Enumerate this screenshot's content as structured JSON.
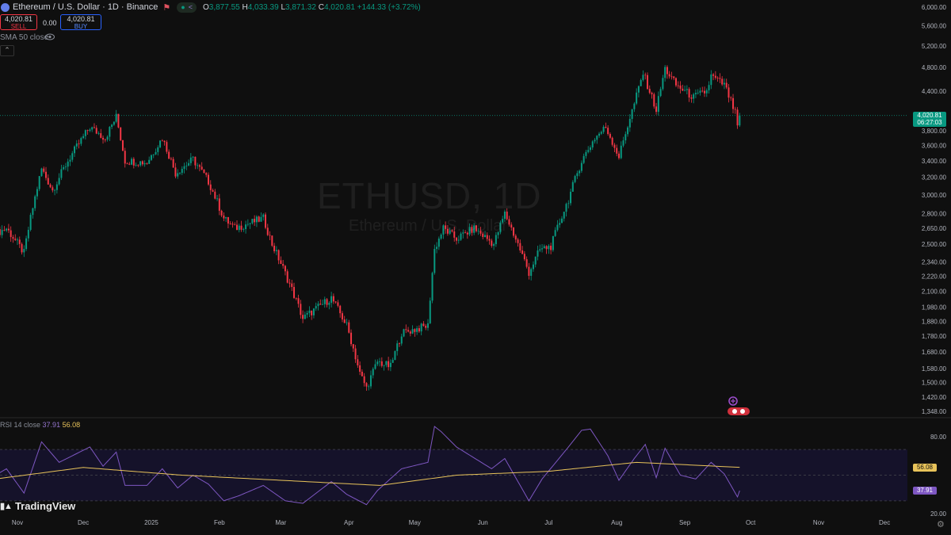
{
  "header": {
    "title": "Ethereum / U.S. Dollar · 1D · Binance",
    "open_label": "O",
    "open": "3,877.55",
    "high_label": "H",
    "high": "4,033.39",
    "low_label": "L",
    "low": "3,871.32",
    "close_label": "C",
    "close": "4,020.81",
    "change": "+144.33 (+3.72%)"
  },
  "trade": {
    "sell_price": "4,020.81",
    "sell_label": "SELL",
    "spread": "0.00",
    "buy_price": "4,020.81",
    "buy_label": "BUY"
  },
  "indicators": {
    "sma_label": "SMA 50 close",
    "rsi_label": "RSI 14 close",
    "rsi_value": "37.91",
    "rsi_ma_value": "56.08"
  },
  "watermark": {
    "symbol": "ETHUSD, 1D",
    "name": "Ethereum / U.S. Dollar"
  },
  "price_tag": {
    "price": "4,020.81",
    "countdown": "06:27:03"
  },
  "brand": "TradingView",
  "colors": {
    "up": "#089981",
    "down": "#f23645",
    "rsi": "#7e57c2",
    "rsi_ma": "#e8c35a",
    "background": "#0f0f0f"
  },
  "chart_data": {
    "type": "candlestick",
    "price_axis_ticks": [
      "6,000.00",
      "5,600.00",
      "5,200.00",
      "4,800.00",
      "4,400.00",
      "3,800.00",
      "3,600.00",
      "3,400.00",
      "3,200.00",
      "3,000.00",
      "2,800.00",
      "2,650.00",
      "2,500.00",
      "2,340.00",
      "2,220.00",
      "2,100.00",
      "1,980.00",
      "1,880.00",
      "1,780.00",
      "1,680.00",
      "1,580.00",
      "1,500.00",
      "1,420.00",
      "1,348.00"
    ],
    "price_axis_scale": "log",
    "rsi_axis_ticks": [
      "80.00",
      "20.00"
    ],
    "rsi_bands": [
      70,
      50,
      30
    ],
    "time_axis_ticks": [
      "Nov",
      "Dec",
      "2025",
      "Feb",
      "Mar",
      "Apr",
      "May",
      "Jun",
      "Jul",
      "Aug",
      "Sep",
      "Oct",
      "Nov",
      "Dec"
    ],
    "last_price": 4020.81,
    "rsi_last": 37.91,
    "rsi_ma_last": 56.08,
    "price_keypoints": [
      {
        "date": "2024-10-22",
        "price": 2600
      },
      {
        "date": "2024-10-27",
        "price": 2650
      },
      {
        "date": "2024-11-04",
        "price": 2420
      },
      {
        "date": "2024-11-12",
        "price": 3300
      },
      {
        "date": "2024-11-17",
        "price": 3050
      },
      {
        "date": "2024-11-24",
        "price": 3400
      },
      {
        "date": "2024-12-04",
        "price": 3850
      },
      {
        "date": "2024-12-11",
        "price": 3700
      },
      {
        "date": "2024-12-16",
        "price": 4000
      },
      {
        "date": "2024-12-20",
        "price": 3400
      },
      {
        "date": "2024-12-30",
        "price": 3380
      },
      {
        "date": "2025-01-06",
        "price": 3700
      },
      {
        "date": "2025-01-12",
        "price": 3250
      },
      {
        "date": "2025-01-20",
        "price": 3420
      },
      {
        "date": "2025-01-27",
        "price": 3150
      },
      {
        "date": "2025-02-03",
        "price": 2750
      },
      {
        "date": "2025-02-08",
        "price": 2650
      },
      {
        "date": "2025-02-21",
        "price": 2750
      },
      {
        "date": "2025-02-25",
        "price": 2500
      },
      {
        "date": "2025-03-04",
        "price": 2200
      },
      {
        "date": "2025-03-11",
        "price": 1900
      },
      {
        "date": "2025-03-24",
        "price": 2050
      },
      {
        "date": "2025-03-31",
        "price": 1850
      },
      {
        "date": "2025-04-06",
        "price": 1550
      },
      {
        "date": "2025-04-09",
        "price": 1470
      },
      {
        "date": "2025-04-14",
        "price": 1620
      },
      {
        "date": "2025-04-20",
        "price": 1590
      },
      {
        "date": "2025-04-25",
        "price": 1800
      },
      {
        "date": "2025-05-07",
        "price": 1850
      },
      {
        "date": "2025-05-10",
        "price": 2450
      },
      {
        "date": "2025-05-14",
        "price": 2650
      },
      {
        "date": "2025-05-20",
        "price": 2550
      },
      {
        "date": "2025-05-28",
        "price": 2650
      },
      {
        "date": "2025-06-06",
        "price": 2500
      },
      {
        "date": "2025-06-11",
        "price": 2800
      },
      {
        "date": "2025-06-16",
        "price": 2550
      },
      {
        "date": "2025-06-22",
        "price": 2250
      },
      {
        "date": "2025-06-27",
        "price": 2450
      },
      {
        "date": "2025-07-02",
        "price": 2480
      },
      {
        "date": "2025-07-10",
        "price": 2950
      },
      {
        "date": "2025-07-16",
        "price": 3400
      },
      {
        "date": "2025-07-22",
        "price": 3700
      },
      {
        "date": "2025-07-27",
        "price": 3850
      },
      {
        "date": "2025-08-02",
        "price": 3450
      },
      {
        "date": "2025-08-09",
        "price": 4200
      },
      {
        "date": "2025-08-13",
        "price": 4700
      },
      {
        "date": "2025-08-19",
        "price": 4100
      },
      {
        "date": "2025-08-23",
        "price": 4780
      },
      {
        "date": "2025-08-28",
        "price": 4500
      },
      {
        "date": "2025-09-05",
        "price": 4300
      },
      {
        "date": "2025-09-11",
        "price": 4400
      },
      {
        "date": "2025-09-13",
        "price": 4650
      },
      {
        "date": "2025-09-19",
        "price": 4500
      },
      {
        "date": "2025-09-24",
        "price": 4050
      },
      {
        "date": "2025-09-25",
        "price": 3870
      },
      {
        "date": "2025-09-26",
        "price": 4020.81
      }
    ],
    "rsi_keypoints": [
      {
        "date": "2024-10-22",
        "value": 50
      },
      {
        "date": "2024-10-27",
        "value": 55
      },
      {
        "date": "2024-11-04",
        "value": 36
      },
      {
        "date": "2024-11-12",
        "value": 76
      },
      {
        "date": "2024-11-20",
        "value": 60
      },
      {
        "date": "2024-12-04",
        "value": 72
      },
      {
        "date": "2024-12-10",
        "value": 57
      },
      {
        "date": "2024-12-16",
        "value": 68
      },
      {
        "date": "2024-12-20",
        "value": 42
      },
      {
        "date": "2024-12-30",
        "value": 42
      },
      {
        "date": "2025-01-06",
        "value": 55
      },
      {
        "date": "2025-01-13",
        "value": 40
      },
      {
        "date": "2025-01-20",
        "value": 50
      },
      {
        "date": "2025-01-27",
        "value": 43
      },
      {
        "date": "2025-02-03",
        "value": 30
      },
      {
        "date": "2025-02-10",
        "value": 34
      },
      {
        "date": "2025-02-21",
        "value": 42
      },
      {
        "date": "2025-03-03",
        "value": 30
      },
      {
        "date": "2025-03-11",
        "value": 28
      },
      {
        "date": "2025-03-24",
        "value": 45
      },
      {
        "date": "2025-03-31",
        "value": 35
      },
      {
        "date": "2025-04-09",
        "value": 27
      },
      {
        "date": "2025-04-14",
        "value": 38
      },
      {
        "date": "2025-04-25",
        "value": 55
      },
      {
        "date": "2025-05-07",
        "value": 60
      },
      {
        "date": "2025-05-10",
        "value": 88
      },
      {
        "date": "2025-05-13",
        "value": 84
      },
      {
        "date": "2025-05-20",
        "value": 72
      },
      {
        "date": "2025-06-05",
        "value": 55
      },
      {
        "date": "2025-06-11",
        "value": 63
      },
      {
        "date": "2025-06-22",
        "value": 30
      },
      {
        "date": "2025-06-28",
        "value": 47
      },
      {
        "date": "2025-07-10",
        "value": 72
      },
      {
        "date": "2025-07-16",
        "value": 85
      },
      {
        "date": "2025-07-20",
        "value": 86
      },
      {
        "date": "2025-07-28",
        "value": 65
      },
      {
        "date": "2025-08-02",
        "value": 46
      },
      {
        "date": "2025-08-09",
        "value": 63
      },
      {
        "date": "2025-08-14",
        "value": 74
      },
      {
        "date": "2025-08-19",
        "value": 48
      },
      {
        "date": "2025-08-23",
        "value": 71
      },
      {
        "date": "2025-08-30",
        "value": 50
      },
      {
        "date": "2025-09-06",
        "value": 47
      },
      {
        "date": "2025-09-13",
        "value": 60
      },
      {
        "date": "2025-09-19",
        "value": 51
      },
      {
        "date": "2025-09-25",
        "value": 33
      },
      {
        "date": "2025-09-26",
        "value": 37.91
      }
    ],
    "rsi_ma_keypoints": [
      {
        "date": "2024-10-22",
        "value": 47
      },
      {
        "date": "2024-12-01",
        "value": 56
      },
      {
        "date": "2025-01-15",
        "value": 50
      },
      {
        "date": "2025-03-01",
        "value": 46
      },
      {
        "date": "2025-04-15",
        "value": 42
      },
      {
        "date": "2025-05-20",
        "value": 50
      },
      {
        "date": "2025-07-01",
        "value": 53
      },
      {
        "date": "2025-08-10",
        "value": 60
      },
      {
        "date": "2025-09-26",
        "value": 56.08
      }
    ]
  }
}
